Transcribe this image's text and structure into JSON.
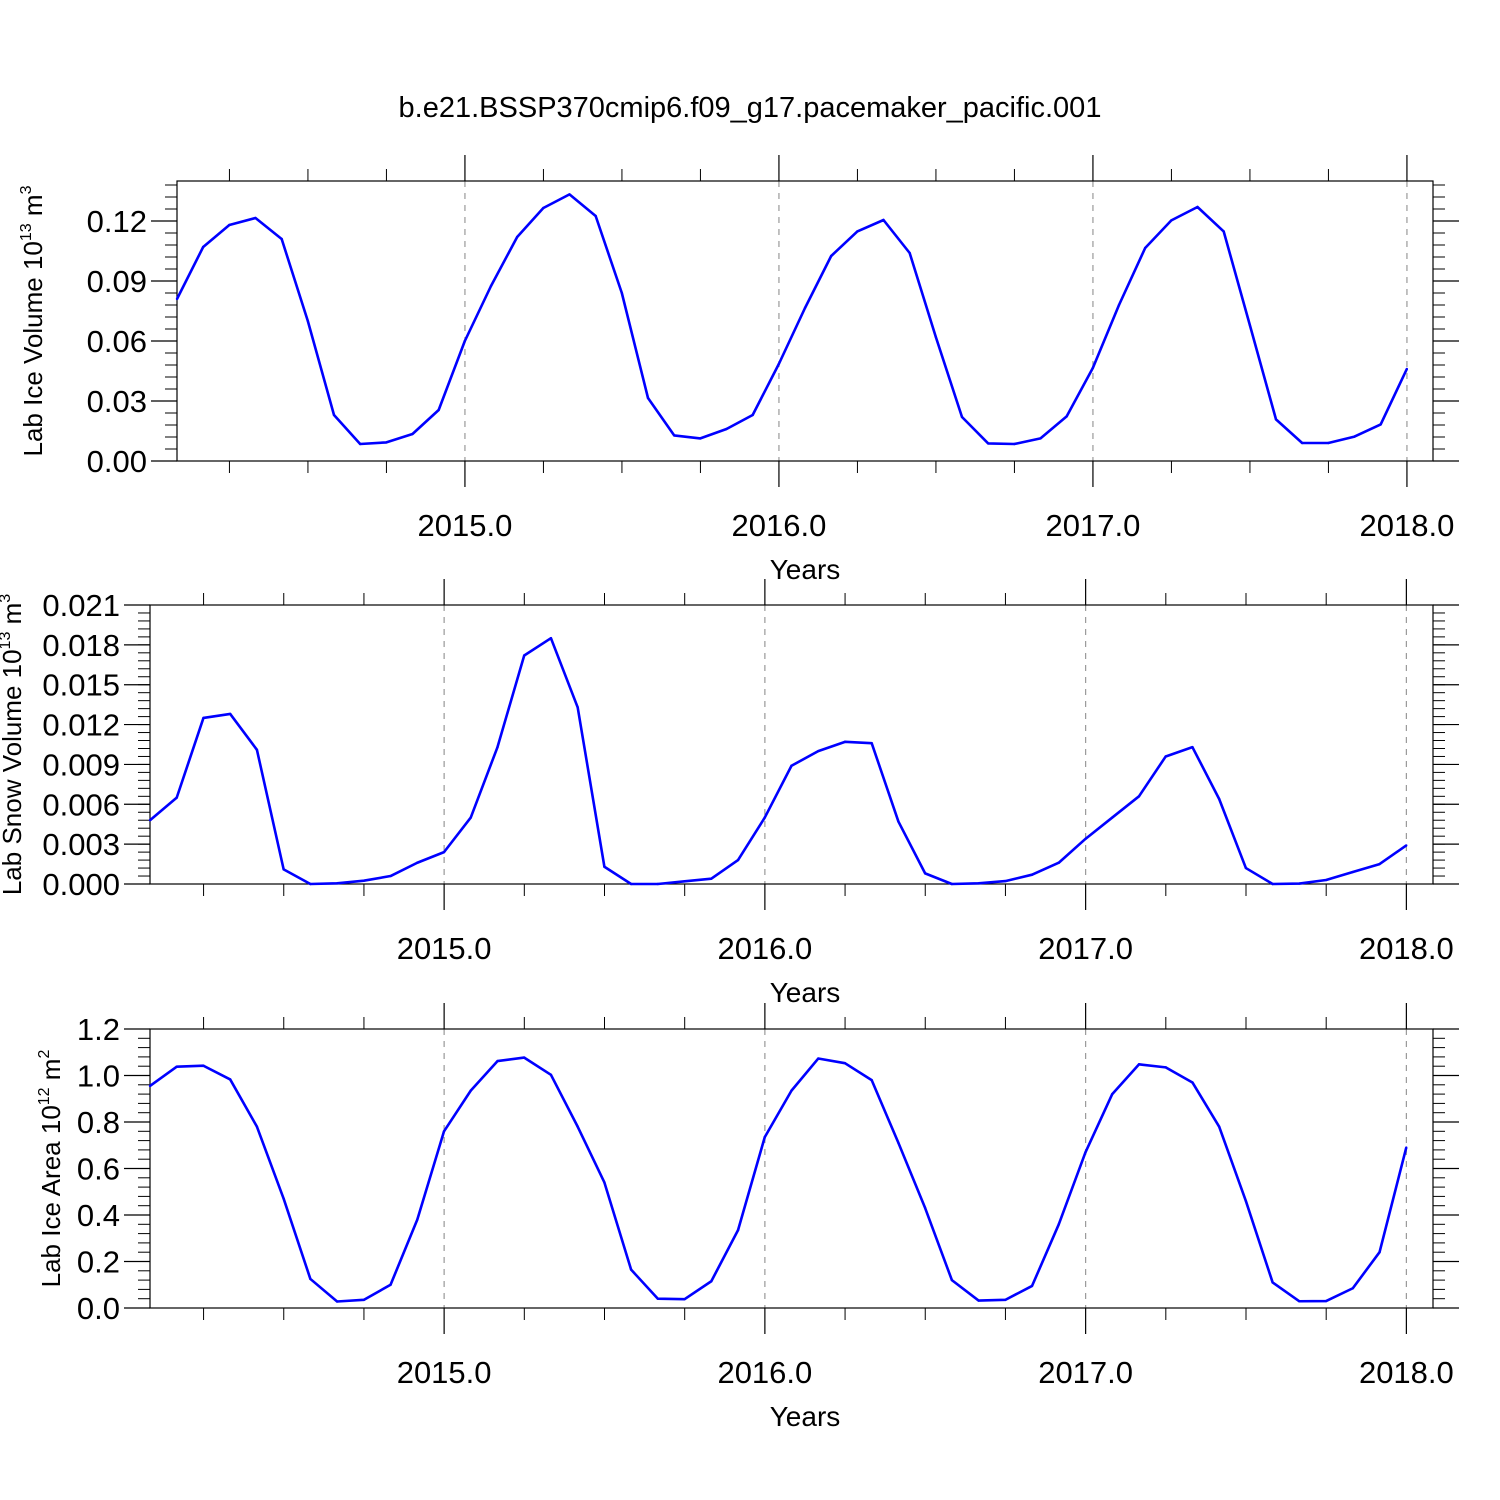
{
  "title": "b.e21.BSSP370cmip6.f09_g17.pacemaker_pacific.001",
  "colors": {
    "series": "#0000ff",
    "axes": "#000000",
    "gridline": "#999999"
  },
  "chart_data": [
    {
      "type": "line",
      "name": "ice-volume",
      "ylabel": {
        "main": "Lab Ice Volume 10",
        "sup1": "13",
        "mid": " m",
        "sup2": "3"
      },
      "xlabel": "Years",
      "xlim": [
        2014.083,
        2018.083
      ],
      "ylim": [
        0,
        0.14
      ],
      "yticks": [
        0,
        0.03,
        0.06,
        0.09,
        0.12
      ],
      "ytick_labels": [
        "0.00",
        "0.03",
        "0.06",
        "0.09",
        "0.12"
      ],
      "xticks": [
        2015,
        2016,
        2017,
        2018
      ],
      "xtick_labels": [
        "2015.0",
        "2016.0",
        "2017.0",
        "2018.0"
      ],
      "x_start": 2014.083,
      "x_step": 0.0833333,
      "values": [
        0.081,
        0.107,
        0.118,
        0.1215,
        0.111,
        0.07,
        0.023,
        0.0085,
        0.0093,
        0.0135,
        0.0255,
        0.06,
        0.0875,
        0.112,
        0.1265,
        0.1333,
        0.1225,
        0.084,
        0.0315,
        0.0128,
        0.0113,
        0.016,
        0.023,
        0.0485,
        0.0765,
        0.1025,
        0.1148,
        0.1205,
        0.104,
        0.062,
        0.022,
        0.0088,
        0.0085,
        0.0113,
        0.0223,
        0.0465,
        0.078,
        0.1065,
        0.1203,
        0.127,
        0.1148,
        0.068,
        0.0208,
        0.009,
        0.009,
        0.0122,
        0.0183,
        0.046
      ]
    },
    {
      "type": "line",
      "name": "snow-volume",
      "ylabel": {
        "main": "Lab Snow Volume 10",
        "sup1": "13",
        "mid": " m",
        "sup2": "3"
      },
      "xlabel": "Years",
      "xlim": [
        2014.083,
        2018.083
      ],
      "ylim": [
        0,
        0.021
      ],
      "yticks": [
        0,
        0.003,
        0.006,
        0.009,
        0.012,
        0.015,
        0.018,
        0.021
      ],
      "ytick_labels": [
        "0.000",
        "0.003",
        "0.006",
        "0.009",
        "0.012",
        "0.015",
        "0.018",
        "0.021"
      ],
      "xticks": [
        2015,
        2016,
        2017,
        2018
      ],
      "xtick_labels": [
        "2015.0",
        "2016.0",
        "2017.0",
        "2018.0"
      ],
      "x_start": 2014.083,
      "x_step": 0.0833333,
      "values": [
        0.0048,
        0.0065,
        0.0125,
        0.0128,
        0.0101,
        0.0011,
        0.0,
        5e-05,
        0.00025,
        0.0006,
        0.0016,
        0.0024,
        0.005,
        0.0103,
        0.0172,
        0.0185,
        0.0133,
        0.0013,
        0.0,
        0.0,
        0.0002,
        0.0004,
        0.0018,
        0.005,
        0.0089,
        0.01,
        0.0107,
        0.0106,
        0.0047,
        0.0008,
        0.0,
        5e-05,
        0.00022,
        0.0007,
        0.0016,
        0.0034,
        0.005,
        0.0066,
        0.0096,
        0.0103,
        0.0064,
        0.0012,
        0.0,
        3e-05,
        0.0003,
        0.0009,
        0.0015,
        0.0029
      ]
    },
    {
      "type": "line",
      "name": "ice-area",
      "ylabel": {
        "main": "Lab Ice Area 10",
        "sup1": "12",
        "mid": " m",
        "sup2": "2"
      },
      "xlabel": "Years",
      "xlim": [
        2014.083,
        2018.083
      ],
      "ylim": [
        0,
        1.2
      ],
      "yticks": [
        0,
        0.2,
        0.4,
        0.6,
        0.8,
        1.0,
        1.2
      ],
      "ytick_labels": [
        "0.0",
        "0.2",
        "0.4",
        "0.6",
        "0.8",
        "1.0",
        "1.2"
      ],
      "xticks": [
        2015,
        2016,
        2017,
        2018
      ],
      "xtick_labels": [
        "2015.0",
        "2016.0",
        "2017.0",
        "2018.0"
      ],
      "x_start": 2014.083,
      "x_step": 0.0833333,
      "values": [
        0.955,
        1.038,
        1.042,
        0.983,
        0.78,
        0.47,
        0.125,
        0.028,
        0.035,
        0.1,
        0.38,
        0.76,
        0.935,
        1.062,
        1.077,
        1.003,
        0.78,
        0.54,
        0.165,
        0.04,
        0.038,
        0.115,
        0.335,
        0.735,
        0.935,
        1.073,
        1.053,
        0.98,
        0.71,
        0.43,
        0.12,
        0.032,
        0.035,
        0.095,
        0.36,
        0.67,
        0.92,
        1.048,
        1.035,
        0.97,
        0.78,
        0.46,
        0.11,
        0.029,
        0.03,
        0.085,
        0.24,
        0.69
      ]
    }
  ]
}
